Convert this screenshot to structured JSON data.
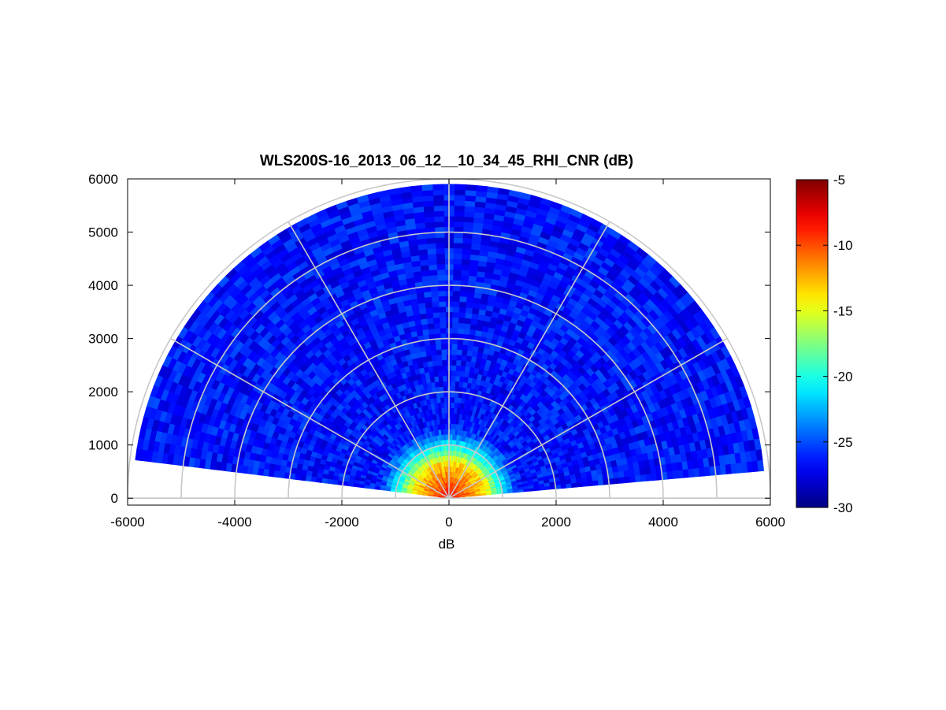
{
  "chart_data": {
    "type": "heatmap",
    "title": "WLS200S-16_2013_06_12__10_34_45_RHI_CNR (dB)",
    "xlabel": "dB",
    "ylabel": "",
    "xlim": [
      -6000,
      6000
    ],
    "ylim": [
      0,
      6000
    ],
    "x_ticks": [
      -6000,
      -4000,
      -2000,
      0,
      2000,
      4000,
      6000
    ],
    "y_ticks": [
      0,
      1000,
      2000,
      3000,
      4000,
      5000,
      6000
    ],
    "grid": "polar",
    "polar_grid": {
      "range_rings": [
        1000,
        2000,
        3000,
        4000,
        5000,
        6000
      ],
      "spokes_deg": [
        0,
        30,
        60,
        90,
        120,
        150,
        180
      ]
    },
    "scan": {
      "elevation_min_deg": 5,
      "elevation_max_deg": 173,
      "max_range": 5900,
      "range_gate": 100,
      "angle_step_deg": 2
    },
    "colorbar": {
      "colormap": "jet",
      "min": -30,
      "max": -5,
      "ticks": [
        -5,
        -10,
        -15,
        -20,
        -25,
        -30
      ]
    },
    "cnr_model": {
      "near_value": -8,
      "blend_range_near": 700,
      "blend_range_far": 1400,
      "far_value_mean": -26.5,
      "far_value_spread": 1.6
    }
  },
  "colors": {
    "grid": "#c8c8c8",
    "axis": "#000000",
    "background": "#ffffff"
  }
}
